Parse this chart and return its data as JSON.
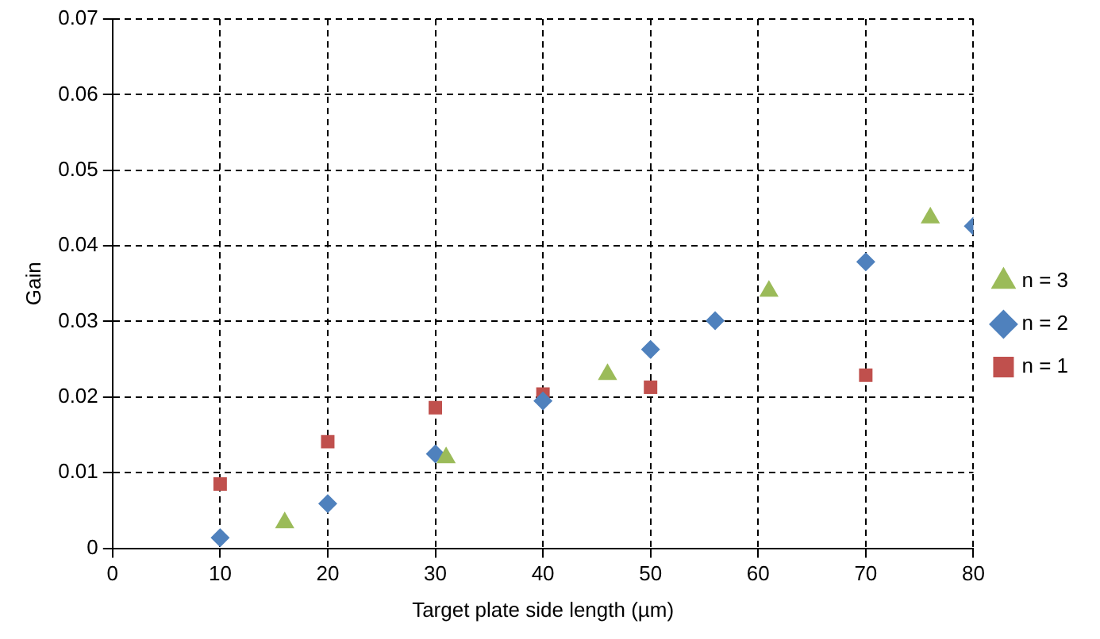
{
  "chart_data": {
    "type": "scatter",
    "xlabel": "Target plate side length (µm)",
    "ylabel": "Gain",
    "xlim": [
      0,
      80
    ],
    "xticks": [
      0,
      10,
      20,
      30,
      40,
      50,
      60,
      70,
      80
    ],
    "ylim": [
      0,
      0.07
    ],
    "yticks": [
      0,
      0.01,
      0.02,
      0.03,
      0.04,
      0.05,
      0.06,
      0.07
    ],
    "grid": true,
    "legend": "right",
    "series": [
      {
        "name": "n = 3",
        "color": "#9bbb59",
        "marker": "triangle",
        "x": [
          16,
          31,
          46,
          61,
          76
        ],
        "values": [
          0.0034,
          0.012,
          0.023,
          0.034,
          0.0437
        ]
      },
      {
        "name": "n = 2",
        "color": "#4f81bd",
        "marker": "diamond",
        "x": [
          10,
          20,
          30,
          40,
          50,
          56,
          70,
          80
        ],
        "values": [
          0.0014,
          0.0059,
          0.0125,
          0.0195,
          0.0263,
          0.0301,
          0.0379,
          0.0426
        ]
      },
      {
        "name": "n = 1",
        "color": "#c0504d",
        "marker": "square",
        "x": [
          10,
          20,
          30,
          40,
          50,
          70
        ],
        "values": [
          0.0085,
          0.0141,
          0.0186,
          0.0204,
          0.0213,
          0.0229
        ]
      }
    ]
  }
}
